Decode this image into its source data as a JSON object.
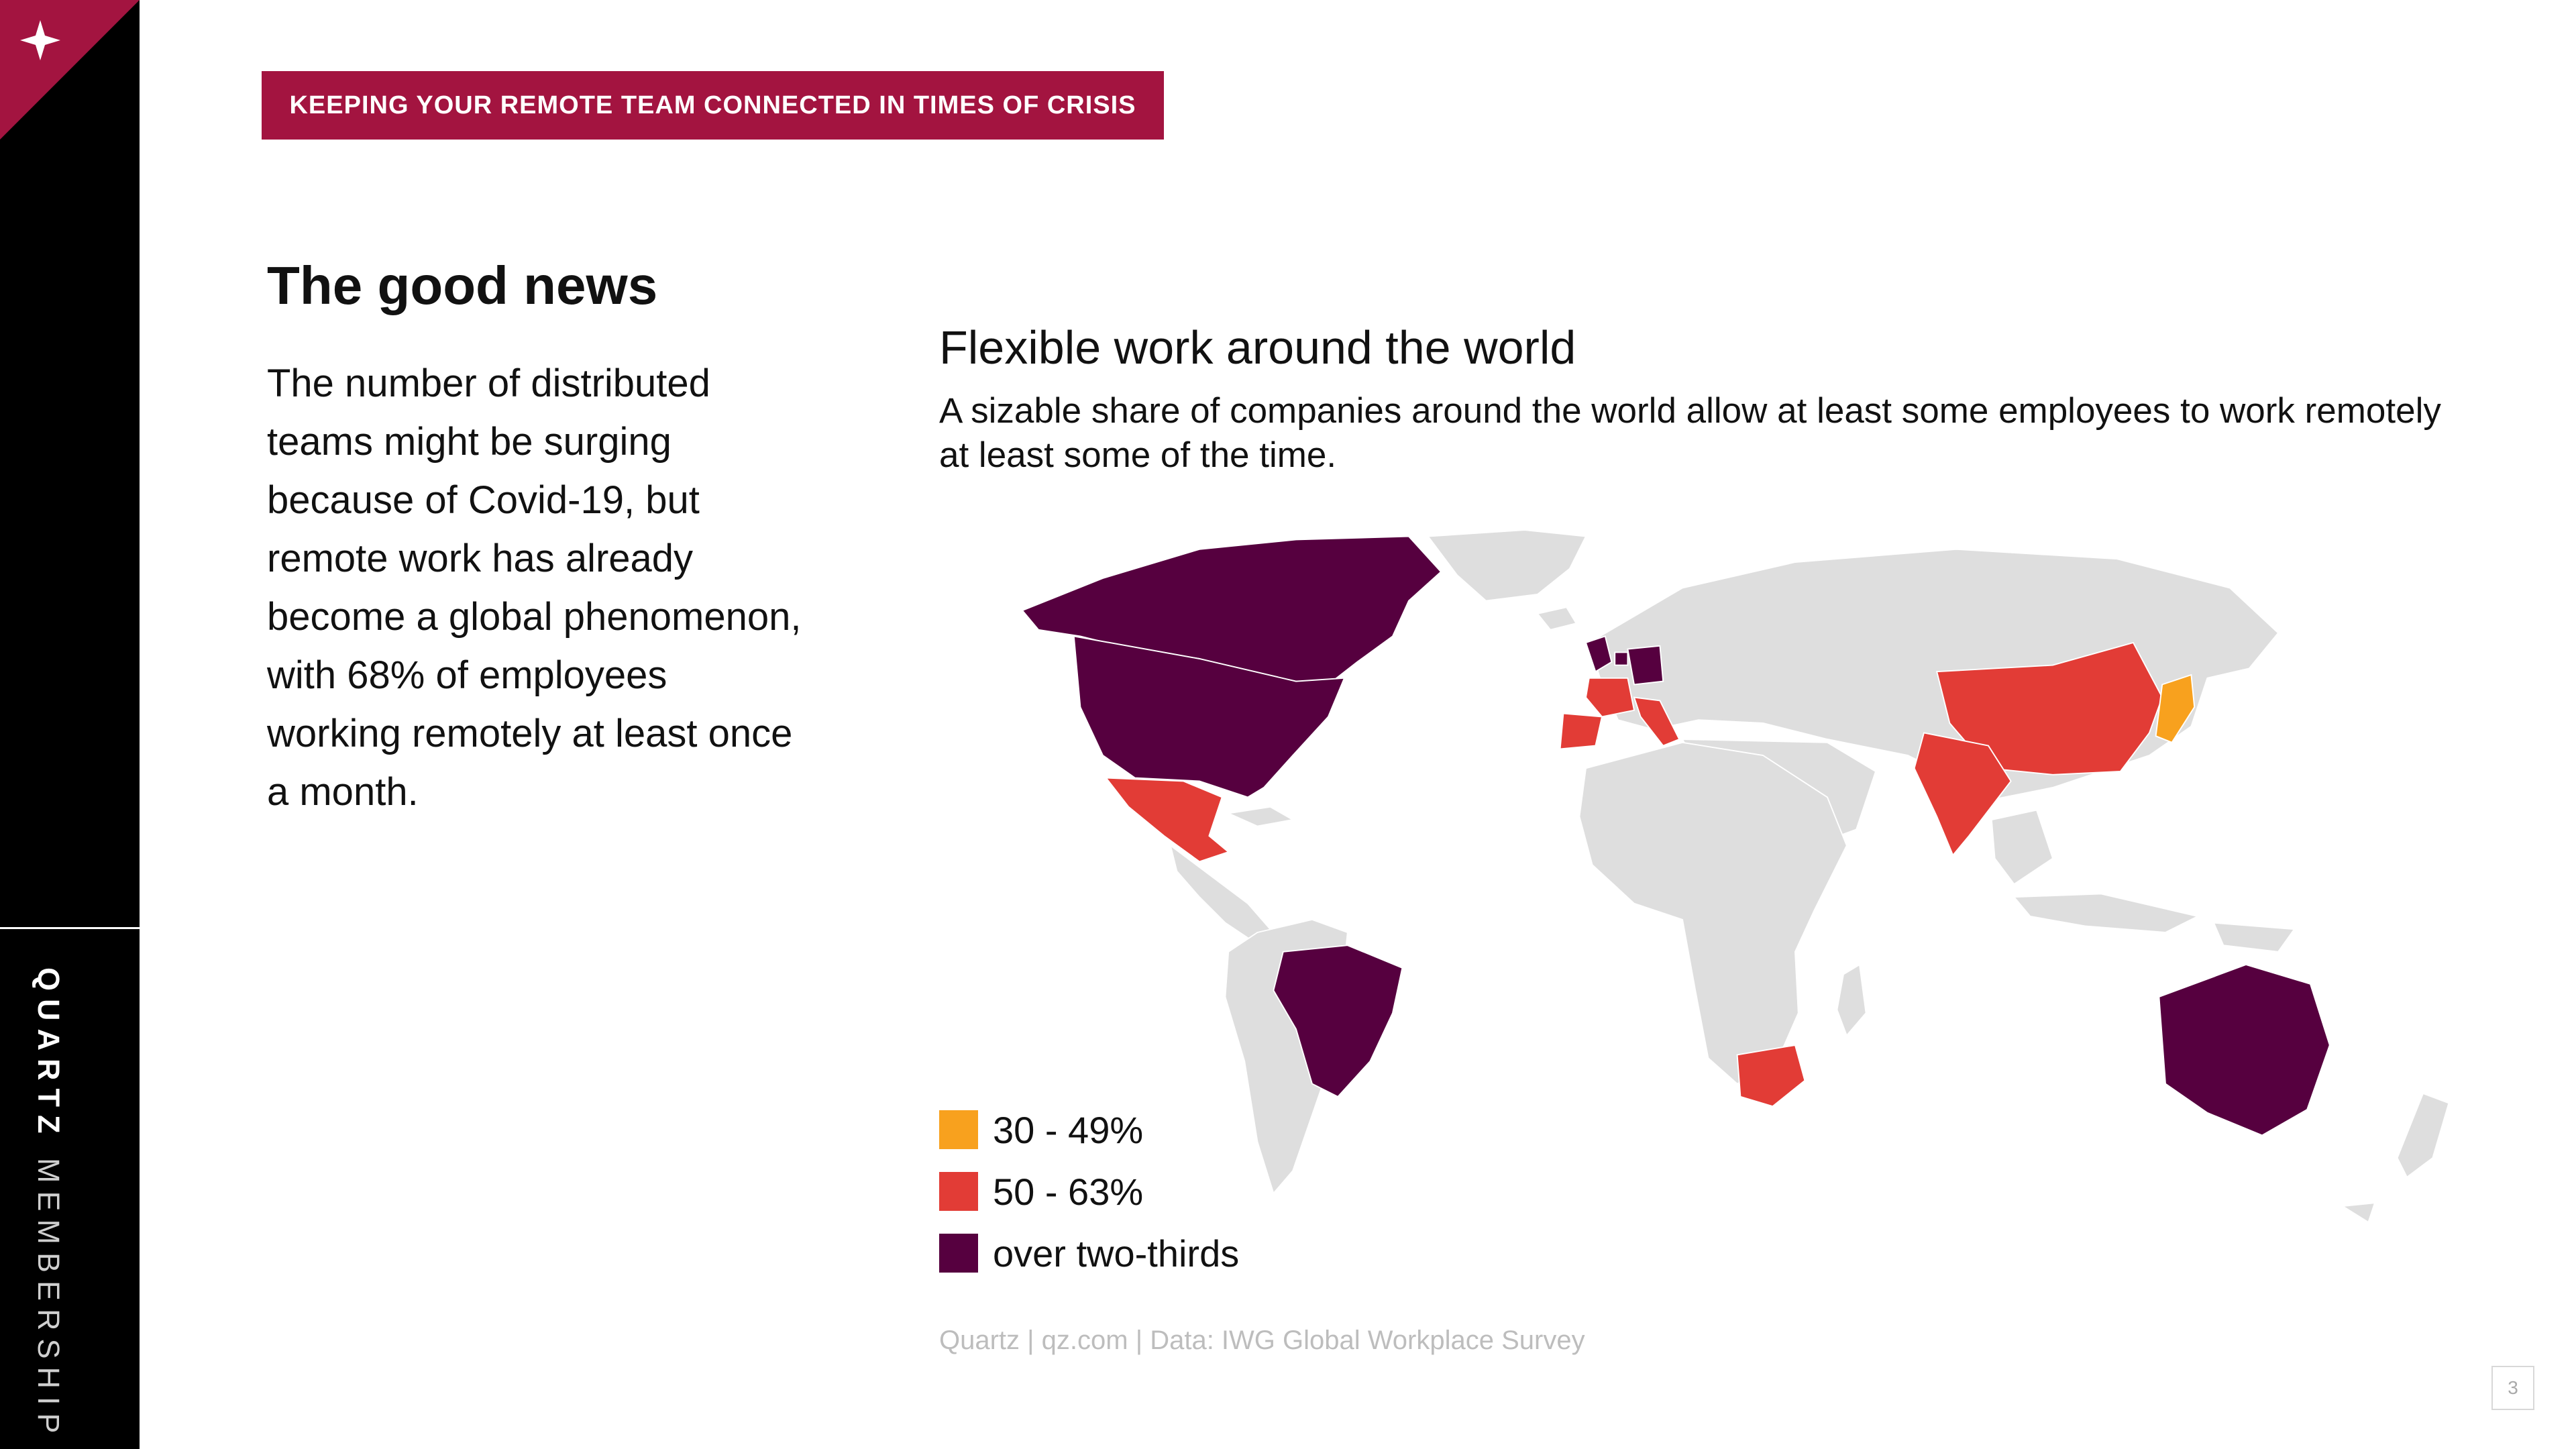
{
  "sidebar": {
    "brand_primary": "QUARTZ",
    "brand_secondary": "MEMBERSHIP",
    "corner_icon": "sparkle-icon",
    "corner_color": "#a31440"
  },
  "banner": {
    "text": "KEEPING YOUR REMOTE TEAM CONNECTED IN TIMES OF CRISIS",
    "color": "#a31440"
  },
  "section": {
    "title": "The good news",
    "body": "The number of distributed teams might be surging because of Covid-19, but remote work has already become a global phenomenon, with 68% of employees working remotely at least once a month."
  },
  "chart": {
    "title": "Flexible work around the world",
    "subtitle": "A sizable share of companies around the world allow at least some employees to work remotely at least some of the time.",
    "source": "Quartz | qz.com | Data: IWG Global Workplace Survey",
    "legend": [
      {
        "label": "30 - 49%",
        "color": "#f8a11e"
      },
      {
        "label": "50 - 63%",
        "color": "#e23c36"
      },
      {
        "label": "over two-thirds",
        "color": "#56003f"
      }
    ]
  },
  "chart_data": {
    "type": "choropleth",
    "base_color": "#dedede",
    "categories": [
      "30 - 49%",
      "50 - 63%",
      "over two-thirds"
    ],
    "regions": [
      {
        "name": "Japan",
        "category": "30 - 49%"
      },
      {
        "name": "China",
        "category": "50 - 63%"
      },
      {
        "name": "India",
        "category": "50 - 63%"
      },
      {
        "name": "Mexico",
        "category": "50 - 63%"
      },
      {
        "name": "Spain",
        "category": "50 - 63%"
      },
      {
        "name": "France",
        "category": "50 - 63%"
      },
      {
        "name": "Italy",
        "category": "50 - 63%"
      },
      {
        "name": "South Africa",
        "category": "50 - 63%"
      },
      {
        "name": "United States",
        "category": "over two-thirds"
      },
      {
        "name": "Canada",
        "category": "over two-thirds"
      },
      {
        "name": "Brazil",
        "category": "over two-thirds"
      },
      {
        "name": "Australia",
        "category": "over two-thirds"
      },
      {
        "name": "United Kingdom",
        "category": "over two-thirds"
      },
      {
        "name": "Germany",
        "category": "over two-thirds"
      },
      {
        "name": "Netherlands",
        "category": "over two-thirds"
      }
    ]
  },
  "page": {
    "number": "3"
  }
}
